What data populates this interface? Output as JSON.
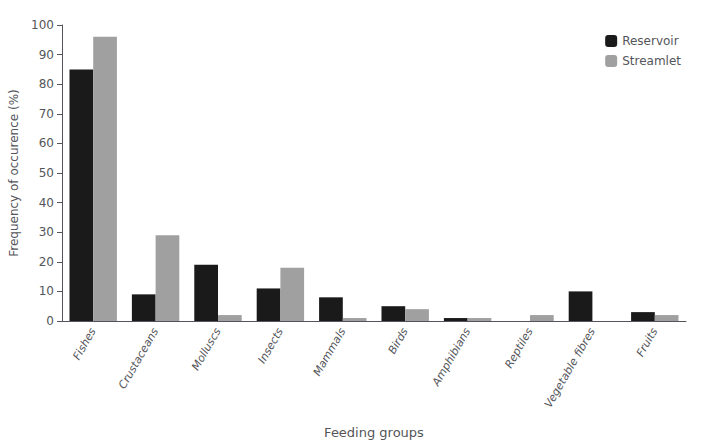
{
  "chart_data": {
    "type": "bar",
    "xlabel": "Feeding groups",
    "ylabel": "Frequency of occurence (%)",
    "categories": [
      "Fishes",
      "Crustaceans",
      "Molluscs",
      "Insects",
      "Mammals",
      "Birds",
      "Amphibians",
      "Reptiles",
      "Vegetable fibres",
      "Fruits"
    ],
    "series": [
      {
        "name": "Reservoir",
        "color": "#1a1a1a",
        "values": [
          85,
          9,
          19,
          11,
          8,
          5,
          1,
          0,
          10,
          3
        ]
      },
      {
        "name": "Streamlet",
        "color": "#a0a0a0",
        "values": [
          96,
          29,
          2,
          18,
          1,
          4,
          1,
          2,
          0,
          2
        ]
      }
    ],
    "ylim": [
      0,
      100
    ],
    "yticks": [
      0,
      10,
      20,
      30,
      40,
      50,
      60,
      70,
      80,
      90,
      100
    ],
    "grid": false,
    "legend": "upper right"
  }
}
